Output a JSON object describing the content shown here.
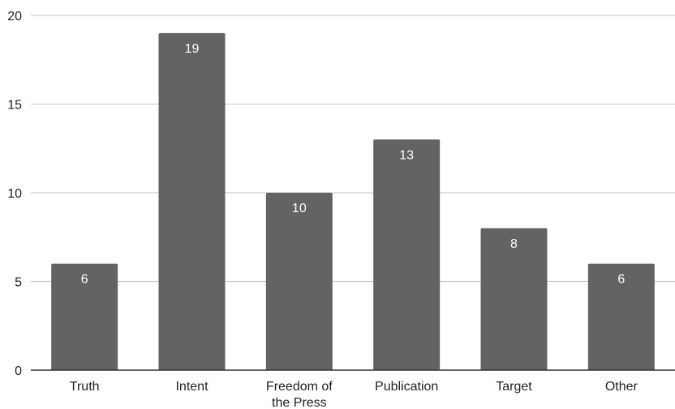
{
  "chart_data": {
    "type": "bar",
    "title": "",
    "xlabel": "",
    "ylabel": "",
    "categories": [
      [
        "Truth"
      ],
      [
        "Intent"
      ],
      [
        "Freedom of",
        "the Press"
      ],
      [
        "Publication"
      ],
      [
        "Target"
      ],
      [
        "Other"
      ]
    ],
    "values": [
      6,
      19,
      10,
      13,
      8,
      6
    ],
    "ylim": [
      0,
      20
    ],
    "yticks": [
      0,
      5,
      10,
      15,
      20
    ],
    "grid": true,
    "data_labels": true,
    "legend": "none",
    "colors": {
      "bar": "#636363",
      "grid": "#c6c6c6",
      "baseline": "#333333",
      "data_label": "#ffffff",
      "text": "#1f1f1f"
    }
  }
}
